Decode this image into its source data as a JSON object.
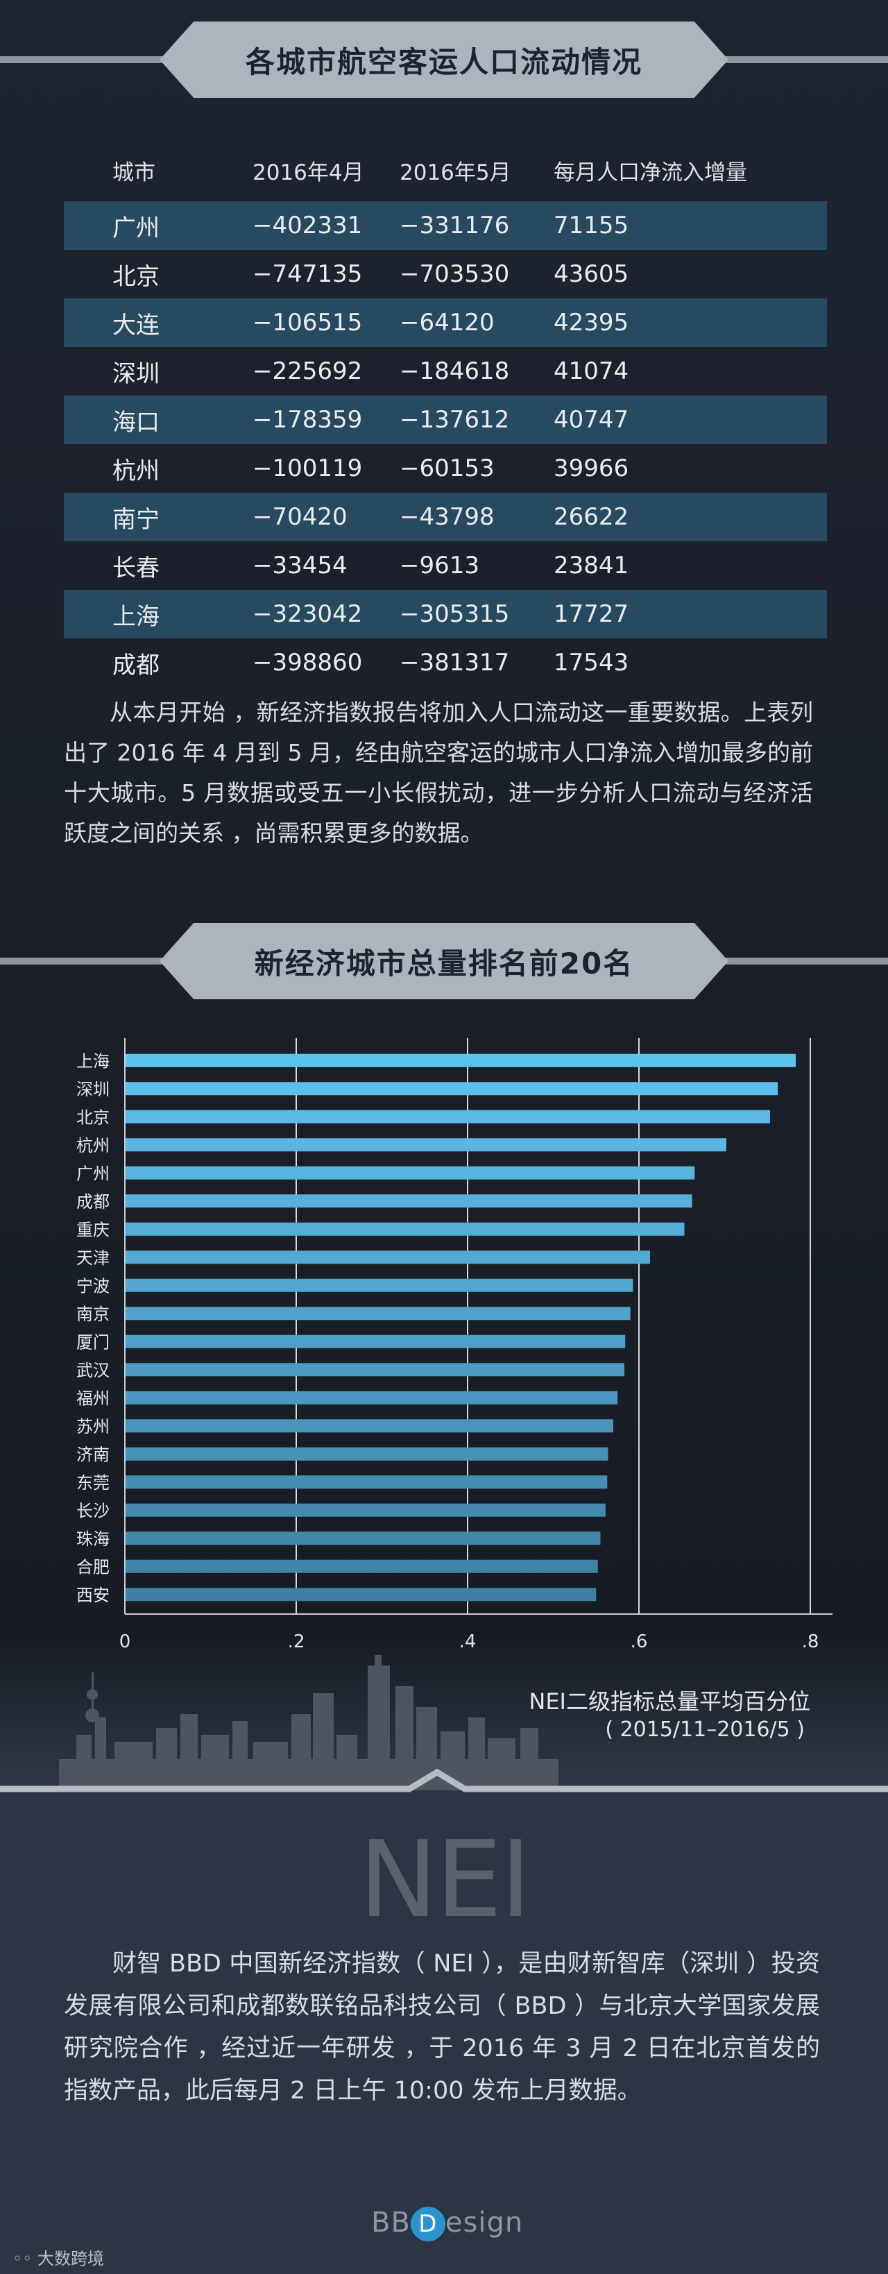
{
  "sections": {
    "flow_title": "各城市航空客运人口流动情况",
    "rank_title": "新经济城市总量排名前20名"
  },
  "flow_table": {
    "headers": [
      "城市",
      "2016年4月",
      "2016年5月",
      "每月人口净流入增量"
    ],
    "rows": [
      [
        "广州",
        "−402331",
        "−331176",
        "71155"
      ],
      [
        "北京",
        "−747135",
        "−703530",
        "43605"
      ],
      [
        "大连",
        "−106515",
        "−64120",
        "42395"
      ],
      [
        "深圳",
        "−225692",
        "−184618",
        "41074"
      ],
      [
        "海口",
        "−178359",
        "−137612",
        "40747"
      ],
      [
        "杭州",
        "−100119",
        "−60153",
        "39966"
      ],
      [
        "南宁",
        "−70420",
        "−43798",
        "26622"
      ],
      [
        "长春",
        "−33454",
        "−9613",
        "23841"
      ],
      [
        "上海",
        "−323042",
        "−305315",
        "17727"
      ],
      [
        "成都",
        "−398860",
        "−381317",
        "17543"
      ]
    ]
  },
  "flow_note": "从本月开始 ，新经济指数报告将加入人口流动这一重要数据。上表列出了 2016 年 4 月到 5 月，经由航空客运的城市人口净流入增加最多的前十大城市。5 月数据或受五一小长假扰动，进一步分析人口流动与经济活跃度之间的关系 ，尚需积累更多的数据。",
  "chart_data": {
    "type": "bar",
    "orientation": "horizontal",
    "categories": [
      "上海",
      "深圳",
      "北京",
      "杭州",
      "广州",
      "成都",
      "重庆",
      "天津",
      "宁波",
      "南京",
      "厦门",
      "武汉",
      "福州",
      "苏州",
      "济南",
      "东莞",
      "长沙",
      "珠海",
      "合肥",
      "西安"
    ],
    "values": [
      0.783,
      0.762,
      0.753,
      0.702,
      0.665,
      0.662,
      0.653,
      0.613,
      0.593,
      0.59,
      0.584,
      0.583,
      0.575,
      0.57,
      0.564,
      0.563,
      0.561,
      0.555,
      0.552,
      0.55
    ],
    "xlim": [
      0,
      0.8
    ],
    "xticks": [
      0,
      0.2,
      0.4,
      0.6,
      0.8
    ],
    "xtick_labels": [
      "0",
      ".2",
      ".4",
      ".6",
      ".8"
    ],
    "xlabel": "NEI二级指标总量平均百分位",
    "xlabel_sub": "( 2015/11–2016/5 )",
    "grid": true,
    "bar_color_top": "#5ec2ee",
    "bar_color_bottom": "#3f7fa3"
  },
  "nei": {
    "heading": "NEI",
    "description": "财智 BBD 中国新经济指数（ NEI ），是由财新智库（深圳 ）投资发展有限公司和成都数联铭品科技公司（ BBD ）与北京大学国家发展研究院合作 ，经过近一年研发 ，于 2016 年 3 月 2 日在北京首发的指数产品，此后每月 2 日上午 10:00 发布上月数据。"
  },
  "logo": {
    "left": "BB",
    "circle": "D",
    "right": "esign"
  },
  "watermark": "大数跨境"
}
